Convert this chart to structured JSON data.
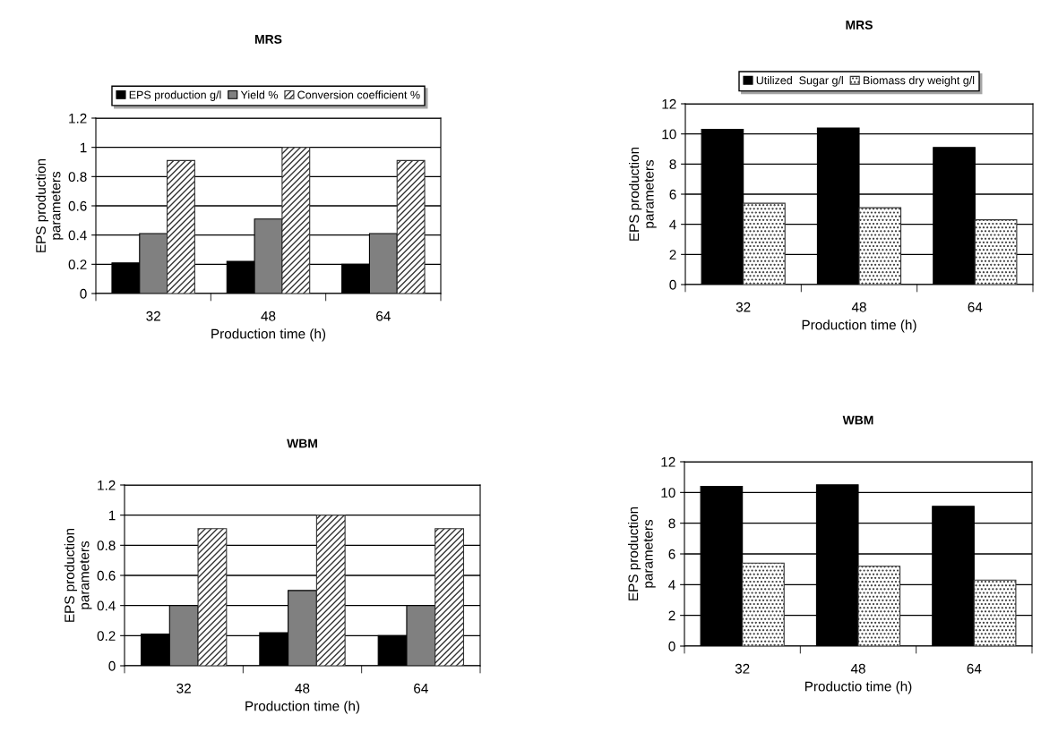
{
  "chart_data": [
    {
      "type": "bar",
      "title": "MRS",
      "xlabel": "Production time (h)",
      "ylabel": "EPS production\nparameters",
      "categories": [
        "32",
        "48",
        "64"
      ],
      "ylim": [
        0,
        1.2
      ],
      "yticks": [
        0,
        0.2,
        0.4,
        0.6,
        0.8,
        1,
        1.2
      ],
      "grid": "y",
      "legend": "top",
      "series": [
        {
          "name": "EPS production g/l",
          "color": "#000000",
          "values": [
            0.21,
            0.22,
            0.2
          ]
        },
        {
          "name": "Yield %",
          "color": "#808080",
          "values": [
            0.41,
            0.51,
            0.41
          ]
        },
        {
          "name": "Conversion coefficient %",
          "color": "#333333",
          "values": [
            0.91,
            1.0,
            0.91
          ]
        }
      ]
    },
    {
      "type": "bar",
      "title": "MRS",
      "xlabel": "Production time (h)",
      "ylabel": "EPS production\nparameters",
      "categories": [
        "32",
        "48",
        "64"
      ],
      "ylim": [
        0,
        12
      ],
      "yticks": [
        0,
        2,
        4,
        6,
        8,
        10,
        12
      ],
      "grid": "y",
      "legend": "top",
      "series": [
        {
          "name": "Utilized  Sugar g/l",
          "color": "#000000",
          "values": [
            10.3,
            10.4,
            9.1
          ]
        },
        {
          "name": "Biomass dry weight g/l",
          "color": "#333333",
          "values": [
            5.4,
            5.1,
            4.3
          ]
        }
      ]
    },
    {
      "type": "bar",
      "title": "WBM",
      "xlabel": "Production time (h)",
      "ylabel": "EPS production\nparameters",
      "categories": [
        "32",
        "48",
        "64"
      ],
      "ylim": [
        0,
        1.2
      ],
      "yticks": [
        0,
        0.2,
        0.4,
        0.6,
        0.8,
        1,
        1.2
      ],
      "grid": "y",
      "series": [
        {
          "color": "#000000",
          "values": [
            0.21,
            0.22,
            0.2
          ]
        },
        {
          "color": "#808080",
          "values": [
            0.4,
            0.5,
            0.4
          ]
        },
        {
          "color": "#333333",
          "values": [
            0.91,
            1.0,
            0.91
          ]
        }
      ]
    },
    {
      "type": "bar",
      "title": "WBM",
      "xlabel": "Productio time (h)",
      "ylabel": "EPS production\nparameters",
      "categories": [
        "32",
        "48",
        "64"
      ],
      "ylim": [
        0,
        12
      ],
      "yticks": [
        0,
        2,
        4,
        6,
        8,
        10,
        12
      ],
      "grid": "y",
      "series": [
        {
          "color": "#000000",
          "values": [
            10.4,
            10.5,
            9.1
          ]
        },
        {
          "color": "#333333",
          "values": [
            5.4,
            5.2,
            4.3
          ]
        }
      ]
    }
  ]
}
